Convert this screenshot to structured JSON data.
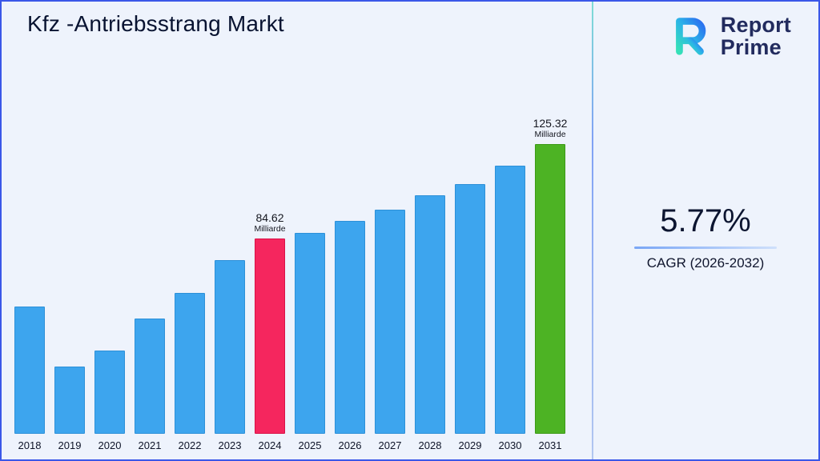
{
  "page": {
    "title": "Kfz -Antriebsstrang Markt"
  },
  "logo": {
    "line1": "Report",
    "line2": "Prime"
  },
  "stats": {
    "cagr_value": "5.77%",
    "cagr_label": "CAGR (2026-2032)"
  },
  "chart_data": {
    "type": "bar",
    "title": "Kfz -Antriebsstrang Markt",
    "categories": [
      "2018",
      "2019",
      "2020",
      "2021",
      "2022",
      "2023",
      "2024",
      "2025",
      "2026",
      "2027",
      "2028",
      "2029",
      "2030",
      "2031"
    ],
    "values": [
      55,
      29,
      36,
      50,
      61,
      75,
      84.62,
      87,
      92,
      97,
      103,
      108,
      116,
      125.32
    ],
    "unit": "Milliarde",
    "ylim": [
      0,
      130
    ],
    "grid": false,
    "legend": false,
    "bar_color": "#3da5ee",
    "annotations": [
      {
        "category": "2024",
        "value_label": "84.62",
        "unit_label": "Milliarde",
        "color": "#f5265e",
        "border": "#d91148"
      },
      {
        "category": "2031",
        "value_label": "125.32",
        "unit_label": "Milliarde",
        "color": "#4db324",
        "border": "#3d9a18"
      }
    ]
  }
}
